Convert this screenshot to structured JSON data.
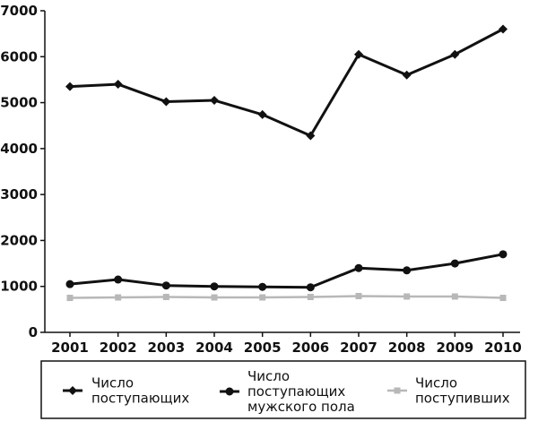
{
  "chart_data": {
    "type": "line",
    "title": "",
    "xlabel": "",
    "ylabel": "",
    "categories": [
      "2001",
      "2002",
      "2003",
      "2004",
      "2005",
      "2006",
      "2007",
      "2008",
      "2009",
      "2010"
    ],
    "ylim": [
      0,
      7000
    ],
    "yticks": [
      0,
      1000,
      2000,
      3000,
      4000,
      5000,
      6000,
      7000
    ],
    "grid": false,
    "legend_position": "bottom",
    "series": [
      {
        "name_lines": [
          "Число",
          "поступающих"
        ],
        "color": "#111111",
        "marker": "diamond",
        "values": [
          5350,
          5400,
          5020,
          5050,
          4740,
          4280,
          6050,
          5600,
          6050,
          6600
        ]
      },
      {
        "name_lines": [
          "Число",
          "поступающих",
          "мужского пола"
        ],
        "color": "#111111",
        "marker": "circle",
        "values": [
          1050,
          1150,
          1020,
          1000,
          990,
          980,
          1400,
          1350,
          1500,
          1700
        ]
      },
      {
        "name_lines": [
          "Число",
          "поступивших"
        ],
        "color": "#b8b8b8",
        "marker": "square",
        "values": [
          750,
          760,
          770,
          760,
          760,
          770,
          790,
          780,
          780,
          750
        ]
      }
    ]
  }
}
